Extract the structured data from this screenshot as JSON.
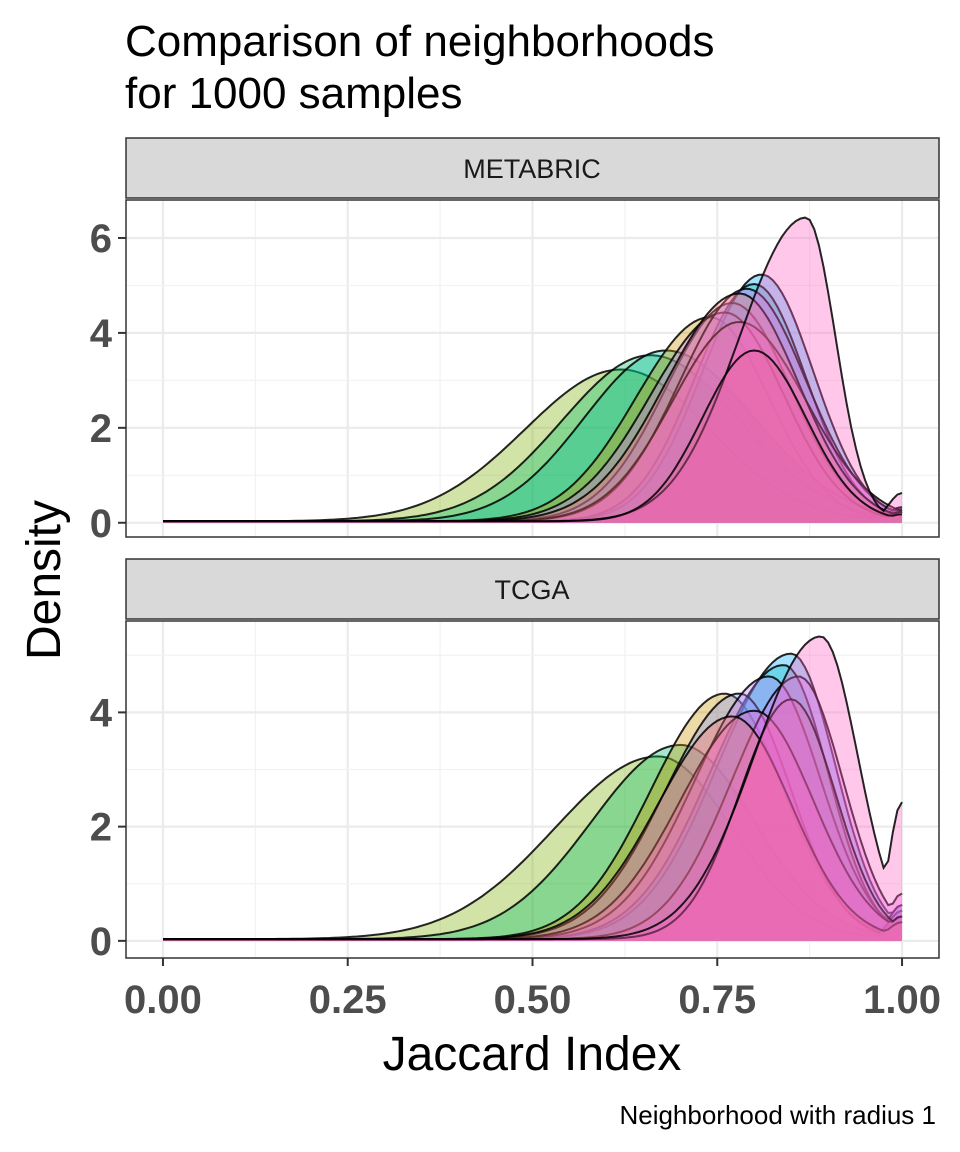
{
  "chart_data": {
    "type": "area",
    "title": "Comparison of neighborhoods\nfor 1000 samples",
    "title_lines": [
      "Comparison of neighborhoods",
      "for 1000 samples"
    ],
    "xlabel": "Jaccard Index",
    "ylabel": "Density",
    "caption": "Neighborhood with radius 1",
    "x_ticks": [
      "0.00",
      "0.25",
      "0.50",
      "0.75",
      "1.00"
    ],
    "x_tick_values": [
      0,
      0.25,
      0.5,
      0.75,
      1.0
    ],
    "xlim": [
      -0.05,
      1.05
    ],
    "grid": true,
    "panels": [
      {
        "strip": "METABRIC",
        "ylim": [
          -0.3,
          6.8
        ],
        "y_ticks": [
          "0",
          "2",
          "4",
          "6"
        ],
        "y_tick_values": [
          0,
          2,
          4,
          6
        ],
        "series": [
          {
            "fill": "#7CAE00",
            "peak_x": 0.62,
            "peak_y": 3.2,
            "sd_left": 0.13,
            "sd_right": 0.12,
            "tail": 0.25
          },
          {
            "fill": "#00BE67",
            "peak_x": 0.66,
            "peak_y": 3.5,
            "sd_left": 0.12,
            "sd_right": 0.12,
            "tail": 0.2
          },
          {
            "fill": "#00C19A",
            "peak_x": 0.68,
            "peak_y": 3.6,
            "sd_left": 0.11,
            "sd_right": 0.12,
            "tail": 0.2
          },
          {
            "fill": "#CD9600",
            "peak_x": 0.74,
            "peak_y": 4.3,
            "sd_left": 0.1,
            "sd_right": 0.08,
            "tail": 0.2
          },
          {
            "fill": "#00A9FF",
            "peak_x": 0.81,
            "peak_y": 5.2,
            "sd_left": 0.08,
            "sd_right": 0.07,
            "tail": 0.3
          },
          {
            "fill": "#00BFC4",
            "peak_x": 0.8,
            "peak_y": 5.0,
            "sd_left": 0.08,
            "sd_right": 0.07,
            "tail": 0.3
          },
          {
            "fill": "#8494FF",
            "peak_x": 0.77,
            "peak_y": 4.6,
            "sd_left": 0.09,
            "sd_right": 0.08,
            "tail": 0.2
          },
          {
            "fill": "#C77CFF",
            "peak_x": 0.76,
            "peak_y": 4.4,
            "sd_left": 0.1,
            "sd_right": 0.08,
            "tail": 0.2
          },
          {
            "fill": "#E76BF3",
            "peak_x": 0.79,
            "peak_y": 4.9,
            "sd_left": 0.09,
            "sd_right": 0.08,
            "tail": 0.25
          },
          {
            "fill": "#FF61CC",
            "peak_x": 0.78,
            "peak_y": 4.2,
            "sd_left": 0.09,
            "sd_right": 0.09,
            "tail": 0.2
          },
          {
            "fill": "#F8766D",
            "peak_x": 0.78,
            "peak_y": 4.8,
            "sd_left": 0.1,
            "sd_right": 0.08,
            "tail": 0.2
          },
          {
            "fill": "#FF61C3",
            "peak_x": 0.87,
            "peak_y": 6.4,
            "sd_left": 0.09,
            "sd_right": 0.04,
            "tail": 0.6
          },
          {
            "fill": "#E7619F",
            "peak_x": 0.8,
            "peak_y": 3.6,
            "sd_left": 0.07,
            "sd_right": 0.07,
            "tail": 0.15
          }
        ]
      },
      {
        "strip": "TCGA",
        "ylim": [
          -0.3,
          5.6
        ],
        "y_ticks": [
          "0",
          "2",
          "4"
        ],
        "y_tick_values": [
          0,
          2,
          4
        ],
        "series": [
          {
            "fill": "#7CAE00",
            "peak_x": 0.67,
            "peak_y": 3.2,
            "sd_left": 0.14,
            "sd_right": 0.1,
            "tail": 0.3
          },
          {
            "fill": "#00BE67",
            "peak_x": 0.7,
            "peak_y": 3.4,
            "sd_left": 0.12,
            "sd_right": 0.1,
            "tail": 0.3
          },
          {
            "fill": "#CD9600",
            "peak_x": 0.76,
            "peak_y": 4.3,
            "sd_left": 0.1,
            "sd_right": 0.08,
            "tail": 0.4
          },
          {
            "fill": "#00A9FF",
            "peak_x": 0.85,
            "peak_y": 5.0,
            "sd_left": 0.1,
            "sd_right": 0.06,
            "tail": 0.6
          },
          {
            "fill": "#00BFC4",
            "peak_x": 0.84,
            "peak_y": 4.8,
            "sd_left": 0.1,
            "sd_right": 0.06,
            "tail": 0.5
          },
          {
            "fill": "#8494FF",
            "peak_x": 0.78,
            "peak_y": 4.3,
            "sd_left": 0.1,
            "sd_right": 0.07,
            "tail": 0.5
          },
          {
            "fill": "#C77CFF",
            "peak_x": 0.82,
            "peak_y": 4.6,
            "sd_left": 0.1,
            "sd_right": 0.07,
            "tail": 0.6
          },
          {
            "fill": "#E76BF3",
            "peak_x": 0.86,
            "peak_y": 4.6,
            "sd_left": 0.09,
            "sd_right": 0.06,
            "tail": 0.8
          },
          {
            "fill": "#FF61CC",
            "peak_x": 0.8,
            "peak_y": 4.0,
            "sd_left": 0.1,
            "sd_right": 0.08,
            "tail": 0.4
          },
          {
            "fill": "#F8766D",
            "peak_x": 0.77,
            "peak_y": 3.9,
            "sd_left": 0.1,
            "sd_right": 0.08,
            "tail": 0.3
          },
          {
            "fill": "#E7619F",
            "peak_x": 0.85,
            "peak_y": 4.2,
            "sd_left": 0.07,
            "sd_right": 0.06,
            "tail": 0.4
          },
          {
            "fill": "#FF61C3",
            "peak_x": 0.89,
            "peak_y": 5.3,
            "sd_left": 0.09,
            "sd_right": 0.05,
            "tail": 2.4
          }
        ]
      }
    ]
  }
}
